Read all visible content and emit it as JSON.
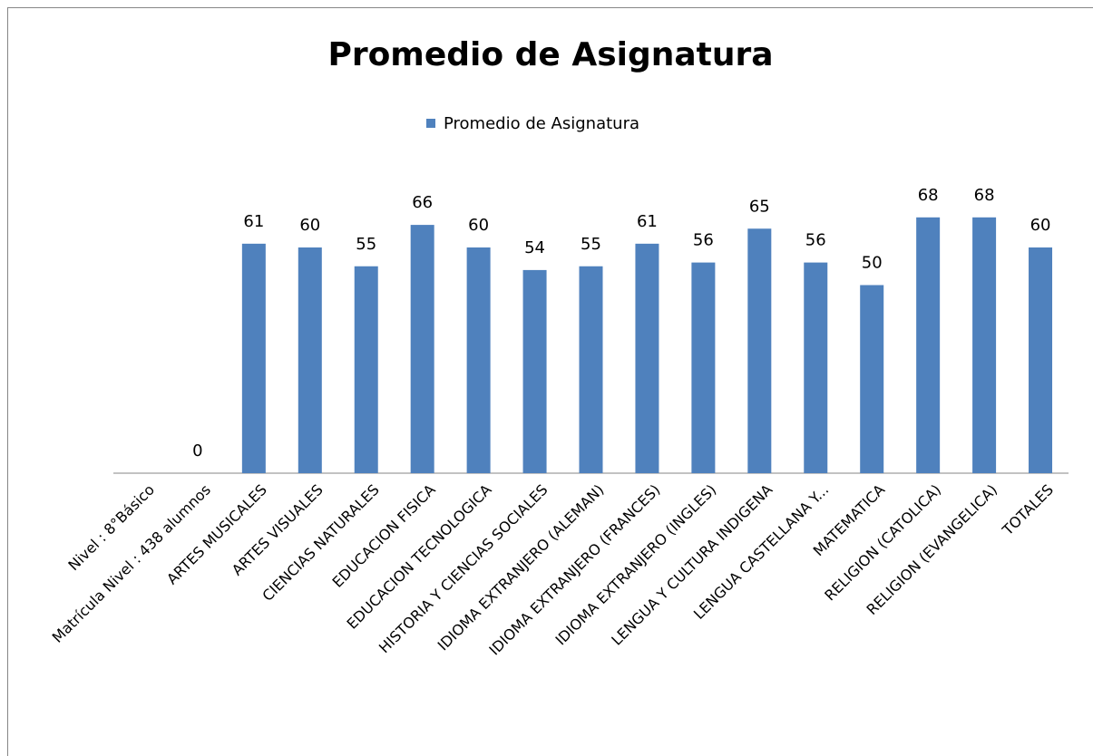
{
  "chart_data": {
    "type": "bar",
    "title": "Promedio de Asignatura",
    "categories": [
      "Nivel : 8°Básico",
      "Matrícula Nivel : 438 alumnos",
      "ARTES MUSICALES",
      "ARTES VISUALES",
      "CIENCIAS NATURALES",
      "EDUCACION FISICA",
      "EDUCACION TECNOLOGICA",
      "HISTORIA Y CIENCIAS SOCIALES",
      "IDIOMA EXTRANJERO (ALEMAN)",
      "IDIOMA EXTRANJERO (FRANCES)",
      "IDIOMA EXTRANJERO (INGLES)",
      "LENGUA Y CULTURA INDIGENA",
      "LENGUA CASTELLANA Y...",
      "MATEMATICA",
      "RELIGION (CATOLICA)",
      "RELIGION (EVANGELICA)",
      "TOTALES"
    ],
    "series": [
      {
        "name": "Promedio de Asignatura",
        "color": "#4f81bd",
        "values": [
          null,
          0,
          61,
          60,
          55,
          66,
          60,
          54,
          55,
          61,
          56,
          65,
          56,
          50,
          68,
          68,
          60
        ]
      }
    ],
    "ylim": [
      0,
      80
    ],
    "legend": "top"
  }
}
